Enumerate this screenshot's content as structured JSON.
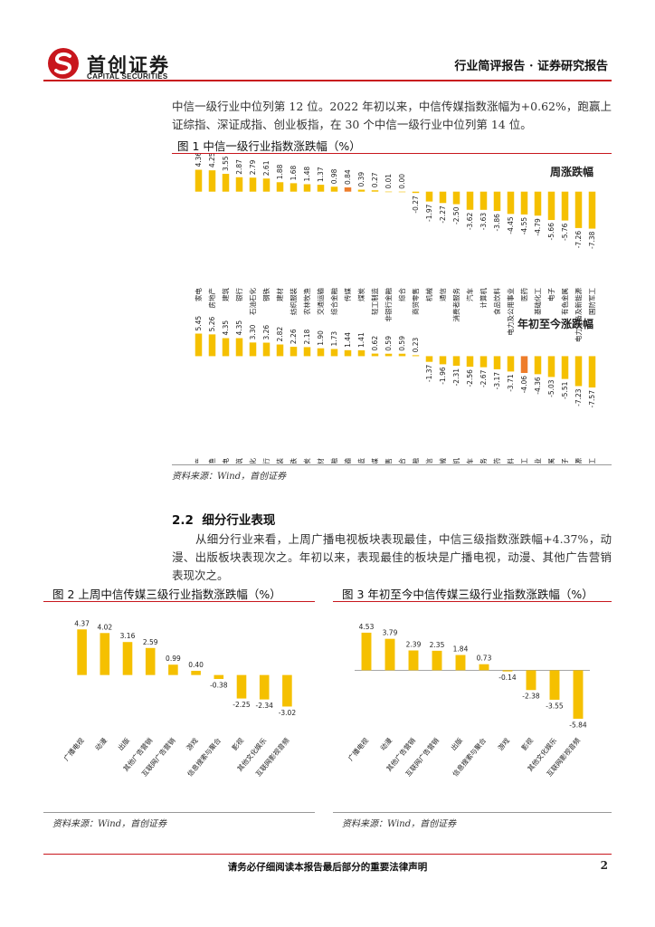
{
  "header": {
    "brand_cn": "首创证券",
    "brand_en": "CAPITAL SECURITIES",
    "report_type": "行业简评报告 · 证券研究报告"
  },
  "intro": {
    "paragraph": "中信一级行业中位列第 12 位。2022 年初以来，中信传媒指数涨幅为+0.62%，跑赢上证综指、深证成指、创业板指，在 30 个中信一级行业中位列第 14 位。"
  },
  "figure1": {
    "title": "图 1 中信一级行业指数涨跌幅（%）",
    "source": "资料来源：Wind，首创证券"
  },
  "section": {
    "number": "2.2",
    "title": "细分行业表现",
    "paragraph": "从细分行业来看，上周广播电视板块表现最佳，中信三级指数涨跌幅+4.37%，动漫、出版板块表现次之。年初以来，表现最佳的板块是广播电视，动漫、其他广告营销表现次之。"
  },
  "figure2": {
    "title": "图 2 上周中信传媒三级行业指数涨跌幅（%）",
    "source": "资料来源：Wind，首创证券"
  },
  "figure3": {
    "title": "图 3 年初至今中信传媒三级行业指数涨跌幅（%）",
    "source": "资料来源：Wind，首创证券"
  },
  "footer": {
    "disclaimer": "请务必仔细阅读本报告最后部分的重要法律声明",
    "page": "2"
  },
  "colors": {
    "bar": "#f5c000",
    "highlight": "#ee7d2b",
    "accent": "#c8161d"
  },
  "chart_data": [
    {
      "type": "bar",
      "title": "周涨跌幅",
      "categories": [
        "家电",
        "房地产",
        "建筑",
        "银行",
        "石油石化",
        "钢铁",
        "建材",
        "纺织服装",
        "农林牧渔",
        "交通运输",
        "综合金融",
        "传媒",
        "煤炭",
        "轻工制造",
        "非银行金融",
        "综合",
        "商贸零售",
        "机械",
        "通信",
        "消费者服务",
        "汽车",
        "计算机",
        "食品饮料",
        "电力及公用事业",
        "医药",
        "基础化工",
        "电子",
        "有色金属",
        "电力设备及新能源",
        "国防军工"
      ],
      "values": [
        4.36,
        4.25,
        3.55,
        2.87,
        2.79,
        2.61,
        1.88,
        1.68,
        1.48,
        1.37,
        0.98,
        0.84,
        0.39,
        0.27,
        0.01,
        0.0,
        -0.27,
        -1.97,
        -2.27,
        -2.5,
        -3.62,
        -3.63,
        -3.86,
        -4.45,
        -4.55,
        -4.79,
        -5.66,
        -5.76,
        -7.26,
        -7.38
      ],
      "value_labels": [
        "4.36",
        "4.25",
        "3.55",
        "2.87",
        "2.79",
        "2.61",
        "1.88",
        "1.68",
        "1.48",
        "1.37",
        "0.98",
        "0.84",
        "0.39",
        "0.27",
        "0.01",
        "0.00",
        "-0.27",
        "-1.97",
        "-2.27",
        "-2.50",
        "-3.62",
        "-3.63",
        "-3.86",
        "-4.45",
        "-4.55",
        "-4.79",
        "-5.66",
        "-5.76",
        "-7.26",
        "-7.38"
      ],
      "highlight": "传媒",
      "ylim": [
        -8,
        5
      ]
    },
    {
      "type": "bar",
      "title": "年初至今涨跌幅",
      "categories": [
        "房地产",
        "农林牧渔",
        "家电",
        "建筑",
        "石油石化",
        "银行",
        "纺织服装",
        "钢铁",
        "煤炭",
        "建材",
        "综合金融",
        "交通运输",
        "轻工制造",
        "传媒",
        "商贸零售",
        "综合",
        "非银行金融",
        "通信",
        "机械",
        "计算机",
        "汽车",
        "消费者服务",
        "医药",
        "食品饮料",
        "基础化工",
        "电力及公用事业",
        "有色金属",
        "电子",
        "电力设备及新能源",
        "国防军工"
      ],
      "values": [
        5.45,
        5.26,
        4.35,
        4.35,
        3.3,
        3.26,
        2.82,
        2.26,
        2.18,
        1.9,
        1.73,
        1.44,
        1.41,
        0.62,
        0.59,
        0.59,
        0.23,
        -1.37,
        -1.96,
        -2.31,
        -2.56,
        -2.67,
        -3.17,
        -3.71,
        -4.06,
        -4.36,
        -5.03,
        -5.51,
        -7.23,
        -7.57
      ],
      "value_labels": [
        "5.45",
        "5.26",
        "4.35",
        "4.35",
        "3.30",
        "3.26",
        "2.82",
        "2.26",
        "2.18",
        "1.90",
        "1.73",
        "1.44",
        "1.41",
        "0.62",
        "0.59",
        "0.59",
        "0.23",
        "-1.37",
        "-1.96",
        "-2.31",
        "-2.56",
        "-2.67",
        "-3.17",
        "-3.71",
        "-4.06",
        "-4.36",
        "-5.03",
        "-5.51",
        "-7.23",
        "-7.57"
      ],
      "highlight": "基础化工",
      "ylim": [
        -8,
        6
      ]
    },
    {
      "type": "bar",
      "title": "上周中信传媒三级行业指数涨跌幅（%）",
      "categories": [
        "广播电视",
        "动漫",
        "出版",
        "其他广告营销",
        "互联网广告营销",
        "游戏",
        "信息搜索与聚合",
        "影视",
        "其他文化娱乐",
        "互联网影视音频"
      ],
      "values": [
        4.37,
        4.02,
        3.16,
        2.59,
        0.99,
        0.4,
        -0.38,
        -2.25,
        -2.34,
        -3.02
      ],
      "value_labels": [
        "4.37",
        "4.02",
        "3.16",
        "2.59",
        "0.99",
        "0.40",
        "-0.38",
        "-2.25",
        "-2.34",
        "-3.02"
      ],
      "ylim": [
        -3.5,
        5
      ]
    },
    {
      "type": "bar",
      "title": "年初至今中信传媒三级行业指数涨跌幅（%）",
      "categories": [
        "广播电视",
        "动漫",
        "其他广告营销",
        "互联网广告营销",
        "出版",
        "信息搜索与聚合",
        "游戏",
        "影视",
        "其他文化娱乐",
        "互联网影视音频"
      ],
      "values": [
        4.53,
        3.79,
        2.39,
        2.35,
        1.84,
        0.73,
        -0.14,
        -2.38,
        -3.55,
        -5.84
      ],
      "value_labels": [
        "4.53",
        "3.79",
        "2.39",
        "2.35",
        "1.84",
        "0.73",
        "-0.14",
        "-2.38",
        "-3.55",
        "-5.84"
      ],
      "ylim": [
        -6.5,
        5.5
      ]
    }
  ]
}
